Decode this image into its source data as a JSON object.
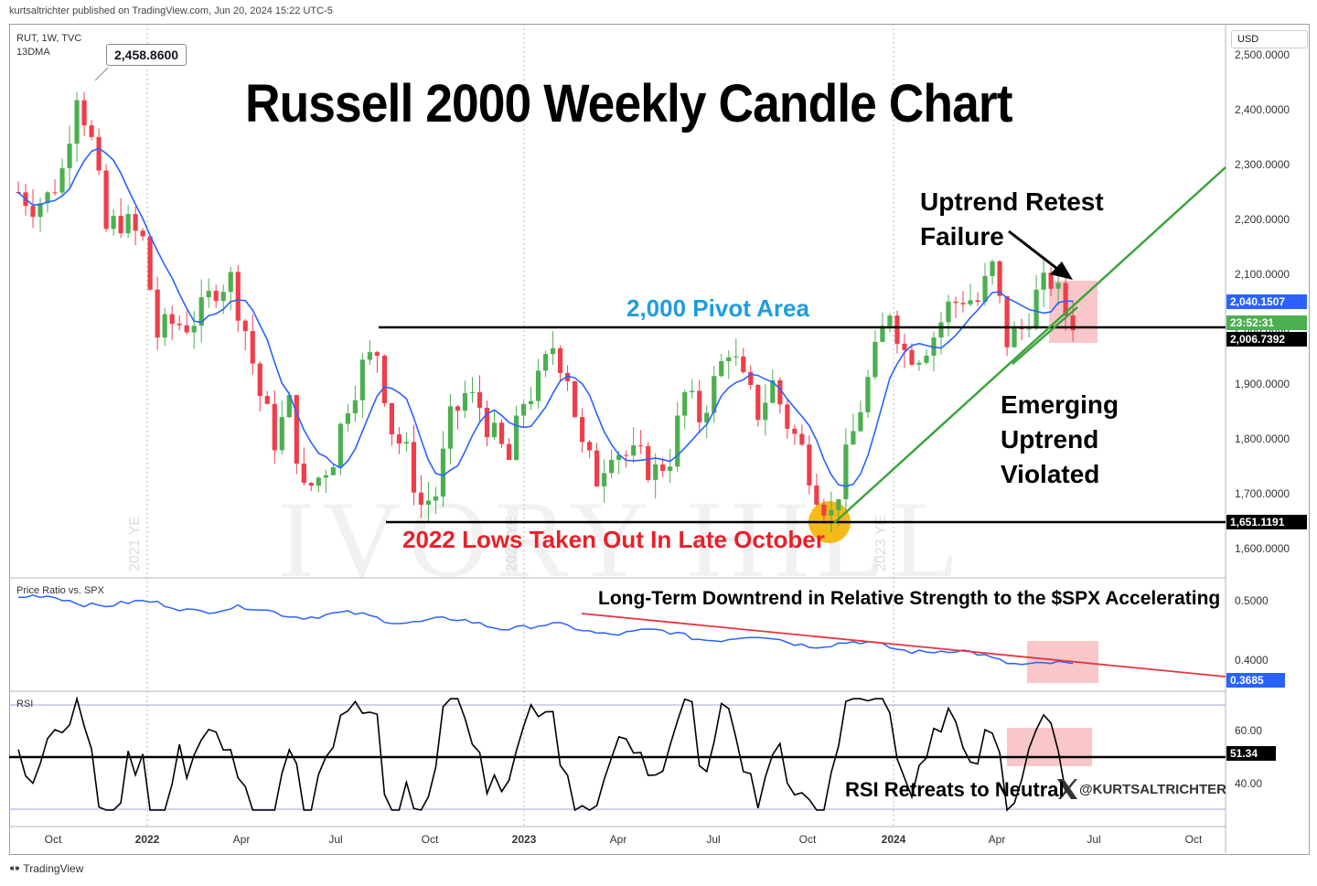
{
  "header": {
    "publisher": "kurtsaltrichter published on TradingView.com, Jun 20, 2024 15:22 UTC-5"
  },
  "symbol": {
    "line1": "RUT, 1W, TVC",
    "line2": "13DMA"
  },
  "currency_button": "USD",
  "title": "Russell 2000 Weekly Candle Chart",
  "callout_high": "2,458.8600",
  "annotations": {
    "pivot": "2,000 Pivot Area",
    "retest_l1": "Uptrend Retest",
    "retest_l2": "Failure",
    "emerging_l1": "Emerging",
    "emerging_l2": "Uptrend",
    "emerging_l3": "Violated",
    "lows": "2022 Lows Taken Out In Late October",
    "relative": "Long-Term Downtrend in Relative Strength to the $SPX Accelerating",
    "rsi": "RSI Retreats to Neutral",
    "handle": "@KURTSALTRICHTER"
  },
  "watermarks": {
    "ye2021": "2021 YE",
    "ye2022": "2022 YE",
    "ye2023": "2023 YE",
    "brand": "IVORY HILL"
  },
  "price_tags": {
    "ma": "2,040.1507",
    "countdown": "23:52:31",
    "last": "2,006.7392",
    "low": "1,651.1191",
    "ratio": "0.3685",
    "rsi": "51.34"
  },
  "panes": {
    "ratio_label": "Price Ratio vs. SPX",
    "rsi_label": "RSI"
  },
  "footer": "TradingView",
  "colors": {
    "up": "#4caf50",
    "down": "#ef3e4a",
    "ma": "#2962ff",
    "ratio": "#2962ff",
    "trend_green": "#3da43d",
    "trend_red": "#e8343f",
    "pivot_blue": "#1e9de0",
    "lows_red": "#e8202a",
    "highlight": "rgba(244,143,150,0.55)",
    "orange": "#f5a900"
  },
  "chart_data": [
    {
      "type": "candlestick",
      "title": "Russell 2000 Weekly Candle Chart",
      "ticker": "RUT, 1W, TVC",
      "y_ticks": [
        "2,500.0000",
        "2,400.0000",
        "2,300.0000",
        "2,200.0000",
        "2,100.0000",
        "2,000.0000",
        "1,900.0000",
        "1,800.0000",
        "1,700.0000",
        "1,600.0000"
      ],
      "x_ticks": [
        "Oct",
        "2022",
        "Apr",
        "Jul",
        "Oct",
        "2023",
        "Apr",
        "Jul",
        "Oct",
        "2024",
        "Apr",
        "Jul",
        "Oct"
      ],
      "ylim": [
        1560,
        2530
      ],
      "high": 2458.86,
      "last": 2006.7392,
      "pivot": 2000,
      "low_2022": 1651.1191,
      "series_close": [
        [
          "2021-09-10",
          2250
        ],
        [
          "2021-09-24",
          2230
        ],
        [
          "2021-10-08",
          2240
        ],
        [
          "2021-10-22",
          2290
        ],
        [
          "2021-11-05",
          2440
        ],
        [
          "2021-11-19",
          2340
        ],
        [
          "2021-12-03",
          2180
        ],
        [
          "2021-12-17",
          2200
        ],
        [
          "2022-01-07",
          2160
        ],
        [
          "2022-01-21",
          1990
        ],
        [
          "2022-02-04",
          2010
        ],
        [
          "2022-02-18",
          2010
        ],
        [
          "2022-03-04",
          2030
        ],
        [
          "2022-03-18",
          2080
        ],
        [
          "2022-04-01",
          2090
        ],
        [
          "2022-04-15",
          2000
        ],
        [
          "2022-04-29",
          1880
        ],
        [
          "2022-05-13",
          1800
        ],
        [
          "2022-05-27",
          1860
        ],
        [
          "2022-06-10",
          1700
        ],
        [
          "2022-06-24",
          1730
        ],
        [
          "2022-07-08",
          1770
        ],
        [
          "2022-07-22",
          1870
        ],
        [
          "2022-08-05",
          1930
        ],
        [
          "2022-08-19",
          1960
        ],
        [
          "2022-09-02",
          1820
        ],
        [
          "2022-09-16",
          1770
        ],
        [
          "2022-09-30",
          1680
        ],
        [
          "2022-10-14",
          1700
        ],
        [
          "2022-10-28",
          1830
        ],
        [
          "2022-11-11",
          1880
        ],
        [
          "2022-11-25",
          1860
        ],
        [
          "2022-12-09",
          1800
        ],
        [
          "2022-12-23",
          1760
        ],
        [
          "2023-01-06",
          1870
        ],
        [
          "2023-01-20",
          1900
        ],
        [
          "2023-02-03",
          1970
        ],
        [
          "2023-02-17",
          1920
        ],
        [
          "2023-03-03",
          1780
        ],
        [
          "2023-03-17",
          1730
        ],
        [
          "2023-03-31",
          1790
        ],
        [
          "2023-04-14",
          1770
        ],
        [
          "2023-04-28",
          1760
        ],
        [
          "2023-05-12",
          1740
        ],
        [
          "2023-05-26",
          1770
        ],
        [
          "2023-06-09",
          1880
        ],
        [
          "2023-06-23",
          1840
        ],
        [
          "2023-07-07",
          1900
        ],
        [
          "2023-07-21",
          1970
        ],
        [
          "2023-08-04",
          1900
        ],
        [
          "2023-08-18",
          1850
        ],
        [
          "2023-09-01",
          1900
        ],
        [
          "2023-09-15",
          1830
        ],
        [
          "2023-09-29",
          1780
        ],
        [
          "2023-10-13",
          1710
        ],
        [
          "2023-10-27",
          1660
        ],
        [
          "2023-11-10",
          1760
        ],
        [
          "2023-11-24",
          1860
        ],
        [
          "2023-12-08",
          1950
        ],
        [
          "2023-12-22",
          2040
        ],
        [
          "2024-01-05",
          1960
        ],
        [
          "2024-01-19",
          1960
        ],
        [
          "2024-02-02",
          1990
        ],
        [
          "2024-02-16",
          2040
        ],
        [
          "2024-03-01",
          2060
        ],
        [
          "2024-03-15",
          2050
        ],
        [
          "2024-03-29",
          2110
        ],
        [
          "2024-04-12",
          1980
        ],
        [
          "2024-04-26",
          2000
        ],
        [
          "2024-05-10",
          2060
        ],
        [
          "2024-05-24",
          2090
        ],
        [
          "2024-06-07",
          2030
        ],
        [
          "2024-06-20",
          2007
        ]
      ]
    },
    {
      "type": "line",
      "name": "Price Ratio vs. SPX",
      "y_ticks": [
        "0.5000",
        "0.4000"
      ],
      "last": 0.3685
    },
    {
      "type": "line",
      "name": "RSI",
      "y_ticks": [
        "60.00",
        "40.00"
      ],
      "last": 51.34
    }
  ]
}
